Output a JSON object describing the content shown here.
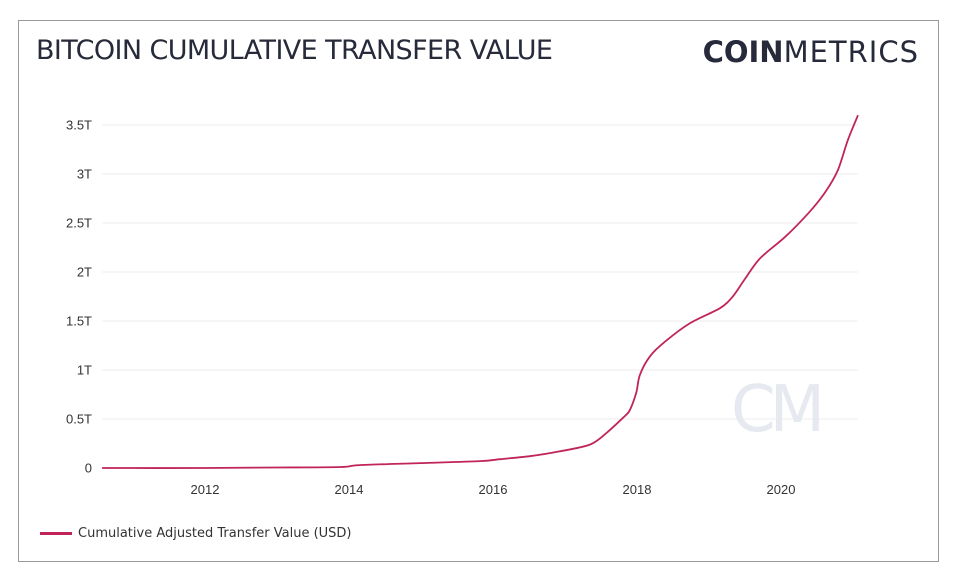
{
  "title": "BITCOIN CUMULATIVE TRANSFER VALUE",
  "logo": {
    "bold": "COIN",
    "light": "METRICS",
    "watermark": "CM"
  },
  "colors": {
    "line": "#c0245a",
    "grid": "#ececec",
    "text": "#262a3a",
    "watermark": "#e6e9f0"
  },
  "chart_data": {
    "type": "line",
    "title": "BITCOIN CUMULATIVE TRANSFER VALUE",
    "xlabel": "",
    "ylabel": "",
    "xlim": [
      2010.57,
      2021.1
    ],
    "ylim": [
      0,
      3.6
    ],
    "y_unit": "trillion USD",
    "grid": true,
    "legend_position": "bottom-left",
    "y_ticks": [
      {
        "value": 0,
        "label": "0"
      },
      {
        "value": 0.5,
        "label": "0.5T"
      },
      {
        "value": 1,
        "label": "1T"
      },
      {
        "value": 1.5,
        "label": "1.5T"
      },
      {
        "value": 2,
        "label": "2T"
      },
      {
        "value": 2.5,
        "label": "2.5T"
      },
      {
        "value": 3,
        "label": "3T"
      },
      {
        "value": 3.5,
        "label": "3.5T"
      }
    ],
    "x_ticks": [
      {
        "value": 2012,
        "label": "2012"
      },
      {
        "value": 2014,
        "label": "2014"
      },
      {
        "value": 2016,
        "label": "2016"
      },
      {
        "value": 2018,
        "label": "2018"
      },
      {
        "value": 2020,
        "label": "2020"
      }
    ],
    "series": [
      {
        "name": "Cumulative Adjusted Transfer Value (USD)",
        "x": [
          2010.57,
          2012.0,
          2013.0,
          2013.88,
          2014.15,
          2014.99,
          2015.82,
          2016.1,
          2016.51,
          2016.93,
          2017.35,
          2017.58,
          2017.83,
          2017.9,
          2017.99,
          2018.04,
          2018.18,
          2018.39,
          2018.74,
          2019.15,
          2019.33,
          2019.5,
          2019.71,
          2020.06,
          2020.38,
          2020.61,
          2020.79,
          2020.93,
          2021.07
        ],
        "values": [
          0,
          0.0,
          0.005,
          0.01,
          0.03,
          0.05,
          0.07,
          0.09,
          0.12,
          0.17,
          0.24,
          0.36,
          0.53,
          0.59,
          0.77,
          0.95,
          1.14,
          1.29,
          1.48,
          1.63,
          1.75,
          1.93,
          2.14,
          2.36,
          2.6,
          2.81,
          3.04,
          3.35,
          3.6
        ]
      }
    ]
  }
}
